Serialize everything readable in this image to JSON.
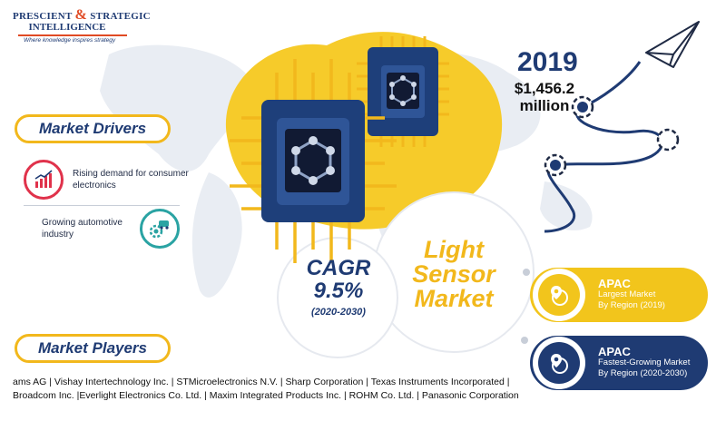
{
  "logo": {
    "line1_a": "PRESCIENT",
    "line1_amp": "&",
    "line1_b": "STRATEGIC",
    "line2": "INTELLIGENCE",
    "tagline": "Where knowledge inspires strategy"
  },
  "drivers": {
    "heading": "Market Drivers",
    "items": [
      {
        "text": "Rising demand for consumer electronics",
        "icon": "growth-chart-icon"
      },
      {
        "text": "Growing automotive industry",
        "icon": "car-gear-icon"
      }
    ]
  },
  "market": {
    "year": "2019",
    "value_line1": "$1,456.2",
    "value_line2": "million",
    "cagr_label": "CAGR",
    "cagr_value": "9.5%",
    "cagr_period": "(2020-2030)",
    "title_line1": "Light",
    "title_line2": "Sensor",
    "title_line3": "Market"
  },
  "regions": [
    {
      "title": "APAC",
      "line1": "Largest Market",
      "line2": "By Region (2019)",
      "icon": "location-globe-icon"
    },
    {
      "title": "APAC",
      "line1": "Fastest-Growing Market",
      "line2": "By Region (2020-2030)",
      "icon": "location-globe-icon"
    }
  ],
  "players": {
    "heading": "Market Players",
    "line1": "ams AG | Vishay Intertechnology Inc. | STMicroelectronics N.V. | Sharp Corporation | Texas Instruments Incorporated |",
    "line2": "Broadcom Inc. |Everlight Electronics Co. Ltd. | Maxim Integrated Products Inc. | ROHM Co. Ltd. |   Panasonic Corporation"
  },
  "colors": {
    "navy": "#1f3b73",
    "yellow": "#f2c51c",
    "red": "#e0324b",
    "teal": "#2aa3a3"
  }
}
